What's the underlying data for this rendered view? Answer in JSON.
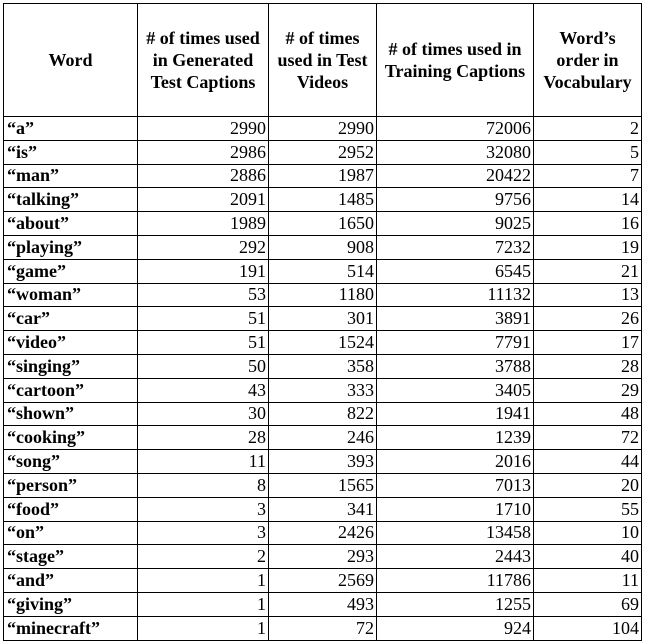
{
  "table": {
    "headers": [
      "Word",
      "# of times used in Generated Test Captions",
      "# of times used in Test Videos",
      "# of times used in Training Captions",
      "Word’s order in Vocabulary"
    ],
    "rows": [
      [
        "“a”",
        "2990",
        "2990",
        "72006",
        "2"
      ],
      [
        "“is”",
        "2986",
        "2952",
        "32080",
        "5"
      ],
      [
        "“man”",
        "2886",
        "1987",
        "20422",
        "7"
      ],
      [
        "“talking”",
        "2091",
        "1485",
        "9756",
        "14"
      ],
      [
        "“about”",
        "1989",
        "1650",
        "9025",
        "16"
      ],
      [
        "“playing”",
        "292",
        "908",
        "7232",
        "19"
      ],
      [
        "“game”",
        "191",
        "514",
        "6545",
        "21"
      ],
      [
        "“woman”",
        "53",
        "1180",
        "11132",
        "13"
      ],
      [
        "“car”",
        "51",
        "301",
        "3891",
        "26"
      ],
      [
        "“video”",
        "51",
        "1524",
        "7791",
        "17"
      ],
      [
        "“singing”",
        "50",
        "358",
        "3788",
        "28"
      ],
      [
        "“cartoon”",
        "43",
        "333",
        "3405",
        "29"
      ],
      [
        "“shown”",
        "30",
        "822",
        "1941",
        "48"
      ],
      [
        "“cooking”",
        "28",
        "246",
        "1239",
        "72"
      ],
      [
        "“song”",
        "11",
        "393",
        "2016",
        "44"
      ],
      [
        "“person”",
        "8",
        "1565",
        "7013",
        "20"
      ],
      [
        "“food”",
        "3",
        "341",
        "1710",
        "55"
      ],
      [
        "“on”",
        "3",
        "2426",
        "13458",
        "10"
      ],
      [
        "“stage”",
        "2",
        "293",
        "2443",
        "40"
      ],
      [
        "“and”",
        "1",
        "2569",
        "11786",
        "11"
      ],
      [
        "“giving”",
        "1",
        "493",
        "1255",
        "69"
      ],
      [
        "“minecraft”",
        "1",
        "72",
        "924",
        "104"
      ]
    ]
  }
}
